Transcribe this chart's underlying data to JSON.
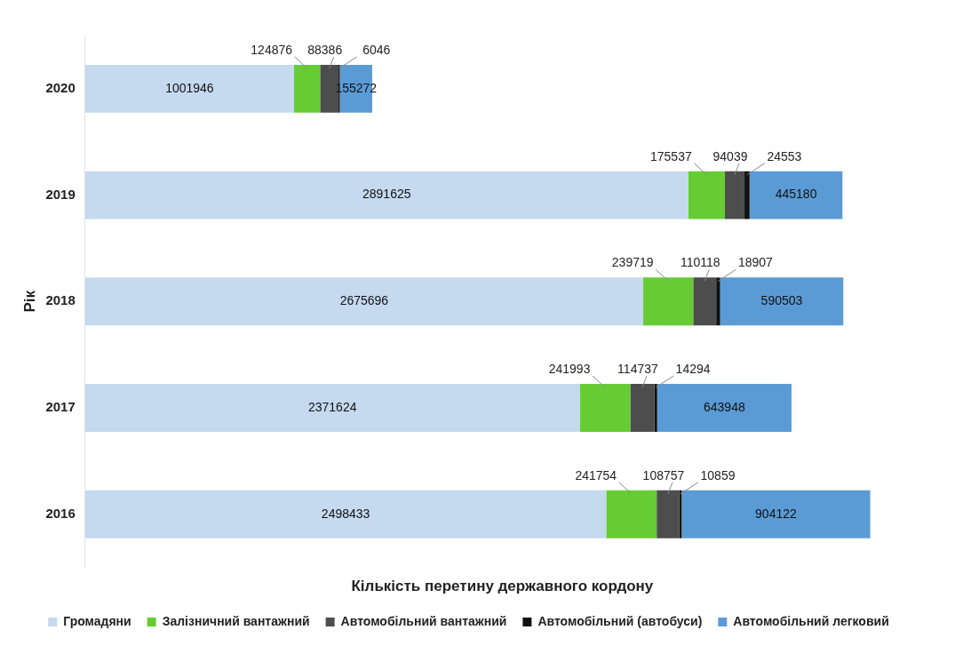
{
  "chart_data": {
    "type": "bar",
    "orientation": "horizontal",
    "stacked": true,
    "data_labels": true,
    "legend": "bottom",
    "tick_labels": "y",
    "ylabel": "Рік",
    "xlabel": "Кількість перетину державного кордону",
    "categories": [
      "2020",
      "2019",
      "2018",
      "2017",
      "2016"
    ],
    "series": [
      {
        "name": "Громадяни",
        "color": "#c5d9ef",
        "values": [
          1001946,
          2891625,
          2675696,
          2371624,
          2498433
        ]
      },
      {
        "name": "Залізничний вантажний",
        "color": "#66cc33",
        "values": [
          124876,
          175537,
          239719,
          241993,
          241754
        ]
      },
      {
        "name": "Автомобільний вантажний",
        "color": "#4d4d4d",
        "values": [
          88386,
          94039,
          110118,
          114737,
          108757
        ]
      },
      {
        "name": "Автомобільний (автобуси)",
        "color": "#111111",
        "values": [
          6046,
          24553,
          18907,
          14294,
          10859
        ]
      },
      {
        "name": "Автомобільний легковий",
        "color": "#5b9bd5",
        "values": [
          155272,
          445180,
          590503,
          643948,
          904122
        ]
      }
    ]
  }
}
